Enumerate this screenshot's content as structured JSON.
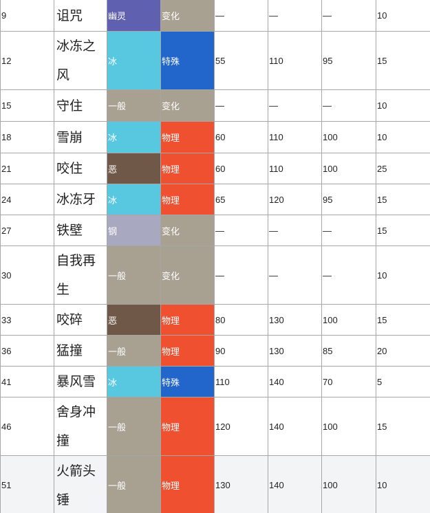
{
  "type_colors": {
    "幽灵": "#6060b0",
    "冰": "#58c8e0",
    "一般": "#a8a090",
    "恶": "#705848",
    "钢": "#a8a8c0"
  },
  "category_colors": {
    "变化": "#a8a090",
    "特殊": "#2266cc",
    "物理": "#ee5030"
  },
  "rows": [
    {
      "level": "9",
      "name": "诅咒",
      "type": "幽灵",
      "category": "变化",
      "power": "—",
      "accuracy": "—",
      "pp": "—",
      "extra": "10"
    },
    {
      "level": "12",
      "name": "冰冻之风",
      "type": "冰",
      "category": "特殊",
      "power": "55",
      "accuracy": "110",
      "pp": "95",
      "extra": "15"
    },
    {
      "level": "15",
      "name": "守住",
      "type": "一般",
      "category": "变化",
      "power": "—",
      "accuracy": "—",
      "pp": "—",
      "extra": "10"
    },
    {
      "level": "18",
      "name": "雪崩",
      "type": "冰",
      "category": "物理",
      "power": "60",
      "accuracy": "110",
      "pp": "100",
      "extra": "10"
    },
    {
      "level": "21",
      "name": "咬住",
      "type": "恶",
      "category": "物理",
      "power": "60",
      "accuracy": "110",
      "pp": "100",
      "extra": "25"
    },
    {
      "level": "24",
      "name": "冰冻牙",
      "type": "冰",
      "category": "物理",
      "power": "65",
      "accuracy": "120",
      "pp": "95",
      "extra": "15"
    },
    {
      "level": "27",
      "name": "铁壁",
      "type": "钢",
      "category": "变化",
      "power": "—",
      "accuracy": "—",
      "pp": "—",
      "extra": "15"
    },
    {
      "level": "30",
      "name": "自我再生",
      "type": "一般",
      "category": "变化",
      "power": "—",
      "accuracy": "—",
      "pp": "—",
      "extra": "10"
    },
    {
      "level": "33",
      "name": "咬碎",
      "type": "恶",
      "category": "物理",
      "power": "80",
      "accuracy": "130",
      "pp": "100",
      "extra": "15"
    },
    {
      "level": "36",
      "name": "猛撞",
      "type": "一般",
      "category": "物理",
      "power": "90",
      "accuracy": "130",
      "pp": "85",
      "extra": "20"
    },
    {
      "level": "41",
      "name": "暴风雪",
      "type": "冰",
      "category": "特殊",
      "power": "110",
      "accuracy": "140",
      "pp": "70",
      "extra": "5"
    },
    {
      "level": "46",
      "name": "舍身冲撞",
      "type": "一般",
      "category": "物理",
      "power": "120",
      "accuracy": "140",
      "pp": "100",
      "extra": "15"
    },
    {
      "level": "51",
      "name": "火箭头锤",
      "type": "一般",
      "category": "物理",
      "power": "130",
      "accuracy": "140",
      "pp": "100",
      "extra": "10"
    }
  ]
}
